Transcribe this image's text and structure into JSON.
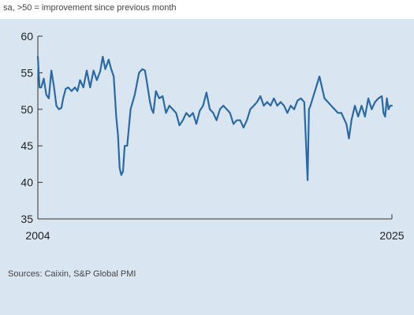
{
  "subtitle": "sa, >50 = improvement since previous month",
  "source": "Sources: Caixin, S&P Global PMI",
  "colors": {
    "background": "#d9e6f2",
    "line": "#2c69a3",
    "axis": "#333333"
  },
  "chart_data": {
    "type": "line",
    "title": "",
    "xlabel": "",
    "ylabel": "",
    "ylim": [
      35,
      60
    ],
    "xlim": [
      2004,
      2025
    ],
    "yticks": [
      35,
      40,
      45,
      50,
      55,
      60
    ],
    "xticks": [
      "2004",
      "2025"
    ],
    "grid": false,
    "series": [
      {
        "x": [
          2004.0,
          2004.1,
          2004.2,
          2004.35,
          2004.5,
          2004.65,
          2004.8,
          2004.95,
          2005.1,
          2005.25,
          2005.4,
          2005.5,
          2005.65,
          2005.8,
          2006.0,
          2006.2,
          2006.35,
          2006.5,
          2006.7,
          2006.9,
          2007.1,
          2007.3,
          2007.5,
          2007.7,
          2007.85,
          2008.0,
          2008.2,
          2008.35,
          2008.5,
          2008.65,
          2008.75,
          2008.85,
          2008.95,
          2009.05,
          2009.15,
          2009.3,
          2009.5,
          2009.75,
          2010.0,
          2010.2,
          2010.35,
          2010.45,
          2010.55,
          2010.65,
          2010.75,
          2010.85,
          2011.0,
          2011.2,
          2011.4,
          2011.6,
          2011.8,
          2012.0,
          2012.2,
          2012.4,
          2012.6,
          2012.8,
          2013.0,
          2013.2,
          2013.4,
          2013.6,
          2013.8,
          2014.0,
          2014.2,
          2014.4,
          2014.6,
          2014.8,
          2015.0,
          2015.2,
          2015.4,
          2015.6,
          2015.8,
          2016.0,
          2016.2,
          2016.4,
          2016.6,
          2016.8,
          2017.0,
          2017.2,
          2017.4,
          2017.6,
          2017.8,
          2018.0,
          2018.2,
          2018.4,
          2018.6,
          2018.8,
          2019.0,
          2019.2,
          2019.4,
          2019.6,
          2019.8,
          2020.0,
          2020.08,
          2020.17,
          2020.3,
          2020.5,
          2020.7,
          2020.85,
          2021.0,
          2021.2,
          2021.4,
          2021.6,
          2021.8,
          2022.0,
          2022.2,
          2022.3,
          2022.45,
          2022.6,
          2022.8,
          2023.0,
          2023.2,
          2023.4,
          2023.6,
          2023.8,
          2024.0,
          2024.2,
          2024.4,
          2024.5,
          2024.6,
          2024.7,
          2024.8,
          2024.9,
          2025.0
        ],
        "values": [
          57.2,
          53.0,
          53.0,
          54.2,
          52.0,
          51.5,
          55.3,
          53.2,
          50.5,
          50.0,
          50.2,
          51.5,
          52.8,
          53.0,
          52.5,
          53.0,
          52.5,
          54.0,
          53.0,
          55.3,
          53.0,
          55.3,
          54.0,
          55.2,
          57.2,
          55.5,
          56.8,
          55.5,
          54.5,
          49.0,
          46.5,
          42.0,
          41.0,
          41.5,
          45.0,
          45.0,
          50.0,
          52.0,
          55.0,
          55.5,
          55.3,
          54.0,
          52.5,
          51.0,
          50.0,
          49.5,
          52.5,
          51.5,
          51.8,
          49.5,
          50.5,
          50.0,
          49.5,
          47.8,
          48.5,
          49.5,
          49.0,
          49.5,
          48.0,
          49.8,
          50.5,
          52.3,
          50.0,
          49.5,
          48.5,
          50.0,
          50.5,
          50.0,
          49.5,
          48.0,
          48.5,
          48.5,
          47.5,
          48.5,
          50.0,
          50.5,
          51.0,
          51.8,
          50.5,
          51.0,
          50.5,
          51.5,
          50.5,
          51.0,
          50.5,
          49.5,
          50.5,
          50.0,
          51.2,
          51.5,
          51.0,
          40.3,
          50.0,
          50.5,
          51.5,
          53.0,
          54.5,
          53.0,
          51.5,
          51.0,
          50.5,
          50.0,
          49.5,
          49.5,
          48.5,
          48.0,
          46.0,
          48.5,
          50.5,
          49.0,
          50.5,
          49.0,
          51.5,
          50.0,
          51.0,
          51.5,
          51.8,
          49.5,
          49.0,
          51.5,
          50.0,
          50.5,
          50.5
        ]
      }
    ]
  }
}
